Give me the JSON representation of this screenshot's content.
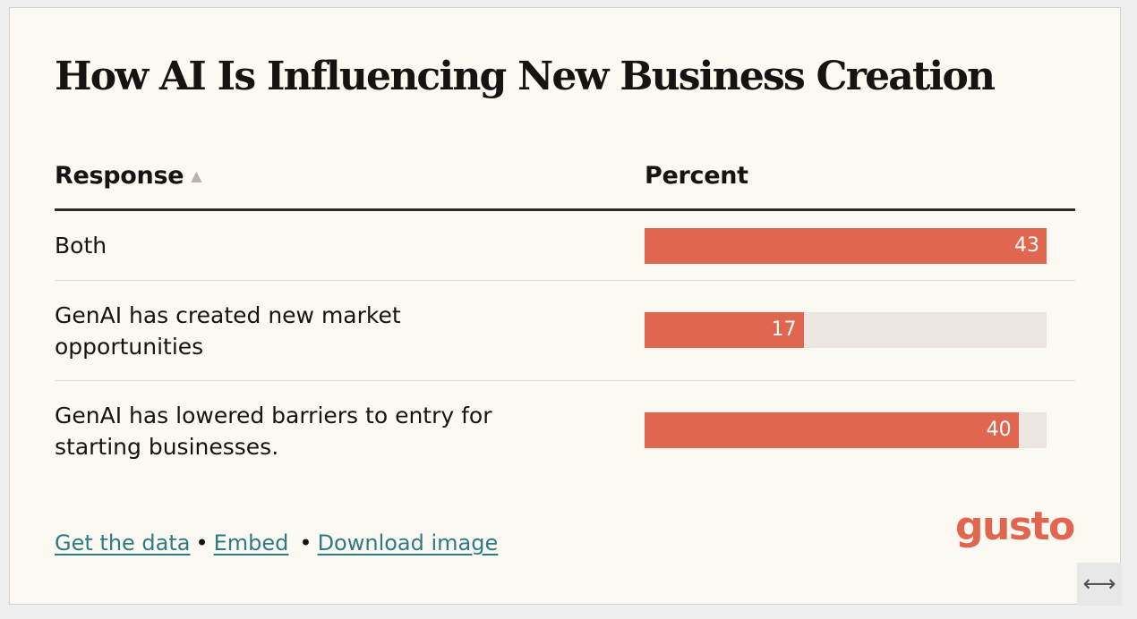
{
  "title": "How AI Is Influencing New Business Creation",
  "columns": {
    "response": "Response",
    "percent": "Percent",
    "sort_icon": "triangle-up-icon"
  },
  "chart_data": {
    "type": "bar",
    "orientation": "horizontal",
    "title": "How AI Is Influencing New Business Creation",
    "categories": [
      "Both",
      "GenAI has created new market opportunities",
      "GenAI has lowered barriers to entry for starting businesses."
    ],
    "values": [
      43,
      17,
      40
    ],
    "xlim": [
      0,
      43
    ],
    "grid": false,
    "legend": "none",
    "colors": {
      "bar": "#e06650",
      "track": "#ebe7e0"
    }
  },
  "rows": [
    {
      "label": "Both",
      "value": "43"
    },
    {
      "label": "GenAI has created new market opportunities",
      "value": "17"
    },
    {
      "label": "GenAI has lowered barriers to entry for starting businesses.",
      "value": "40"
    }
  ],
  "footer": {
    "get_data": "Get the data",
    "separator": "•",
    "embed": "Embed",
    "download": "Download image"
  },
  "logo": "gusto",
  "resize_icon": "⟷",
  "colors": {
    "accent": "#e06650",
    "link": "#2e7b86",
    "background": "#fcf8f2"
  }
}
